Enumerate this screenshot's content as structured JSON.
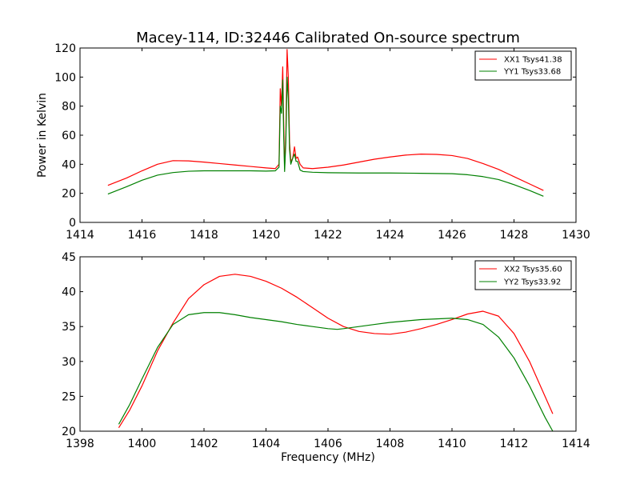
{
  "chart_data": [
    {
      "type": "line",
      "title": "Macey-114, ID:32446 Calibrated On-source spectrum",
      "xlabel": "",
      "ylabel": "Power in Kelvin",
      "xlim": [
        1414,
        1430
      ],
      "ylim": [
        0,
        120
      ],
      "xticks": [
        "1414",
        "1416",
        "1418",
        "1420",
        "1422",
        "1424",
        "1426",
        "1428",
        "1430"
      ],
      "yticks": [
        "0",
        "20",
        "40",
        "60",
        "80",
        "100",
        "120"
      ],
      "legend_position": "top-right",
      "grid": false,
      "series": [
        {
          "name": "XX1 Tsys41.38",
          "color": "#ff0000",
          "points": [
            [
              1414.9,
              25.5
            ],
            [
              1415.5,
              30.5
            ],
            [
              1416,
              35.5
            ],
            [
              1416.5,
              40
            ],
            [
              1417,
              42.5
            ],
            [
              1417.5,
              42.3
            ],
            [
              1418,
              41.5
            ],
            [
              1418.5,
              40.5
            ],
            [
              1419,
              39.5
            ],
            [
              1419.5,
              38.5
            ],
            [
              1420,
              37.5
            ],
            [
              1420.3,
              37
            ],
            [
              1420.42,
              40
            ],
            [
              1420.46,
              92
            ],
            [
              1420.5,
              80
            ],
            [
              1420.54,
              107
            ],
            [
              1420.57,
              70
            ],
            [
              1420.6,
              37
            ],
            [
              1420.64,
              60
            ],
            [
              1420.68,
              119
            ],
            [
              1420.72,
              100
            ],
            [
              1420.76,
              55
            ],
            [
              1420.8,
              42
            ],
            [
              1420.86,
              44
            ],
            [
              1420.92,
              52
            ],
            [
              1420.97,
              44
            ],
            [
              1421.02,
              45
            ],
            [
              1421.1,
              40
            ],
            [
              1421.2,
              37.5
            ],
            [
              1421.5,
              37
            ],
            [
              1422,
              38
            ],
            [
              1422.5,
              39.5
            ],
            [
              1423,
              41.5
            ],
            [
              1423.5,
              43.5
            ],
            [
              1424,
              45
            ],
            [
              1424.5,
              46.3
            ],
            [
              1425,
              47
            ],
            [
              1425.5,
              46.8
            ],
            [
              1426,
              46
            ],
            [
              1426.5,
              44
            ],
            [
              1427,
              40.5
            ],
            [
              1427.5,
              36.5
            ],
            [
              1428,
              31.5
            ],
            [
              1428.5,
              26.5
            ],
            [
              1428.95,
              22
            ]
          ]
        },
        {
          "name": "YY1 Tsys33.68",
          "color": "#008000",
          "points": [
            [
              1414.9,
              19.5
            ],
            [
              1415.5,
              24.5
            ],
            [
              1416,
              29
            ],
            [
              1416.5,
              32.5
            ],
            [
              1417,
              34.3
            ],
            [
              1417.5,
              35.2
            ],
            [
              1418,
              35.5
            ],
            [
              1418.5,
              35.5
            ],
            [
              1419,
              35.5
            ],
            [
              1419.5,
              35.5
            ],
            [
              1420,
              35.3
            ],
            [
              1420.3,
              35.5
            ],
            [
              1420.42,
              38
            ],
            [
              1420.46,
              80
            ],
            [
              1420.5,
              75
            ],
            [
              1420.54,
              98
            ],
            [
              1420.57,
              60
            ],
            [
              1420.6,
              35
            ],
            [
              1420.64,
              55
            ],
            [
              1420.68,
              100
            ],
            [
              1420.72,
              85
            ],
            [
              1420.76,
              50
            ],
            [
              1420.8,
              40
            ],
            [
              1420.86,
              44
            ],
            [
              1420.92,
              47
            ],
            [
              1420.97,
              42
            ],
            [
              1421.02,
              42
            ],
            [
              1421.1,
              36
            ],
            [
              1421.2,
              35
            ],
            [
              1421.5,
              34.5
            ],
            [
              1422,
              34.2
            ],
            [
              1423,
              34
            ],
            [
              1424,
              34
            ],
            [
              1425,
              33.8
            ],
            [
              1426,
              33.5
            ],
            [
              1426.5,
              32.8
            ],
            [
              1427,
              31.5
            ],
            [
              1427.5,
              29.5
            ],
            [
              1428,
              26
            ],
            [
              1428.5,
              22
            ],
            [
              1428.95,
              18
            ]
          ]
        }
      ]
    },
    {
      "type": "line",
      "title": "",
      "xlabel": "Frequency (MHz)",
      "ylabel": "",
      "xlim": [
        1398,
        1414
      ],
      "ylim": [
        20,
        45
      ],
      "xticks": [
        "1398",
        "1400",
        "1402",
        "1404",
        "1406",
        "1408",
        "1410",
        "1412",
        "1414"
      ],
      "yticks": [
        "20",
        "25",
        "30",
        "35",
        "40",
        "45"
      ],
      "legend_position": "top-right",
      "grid": false,
      "series": [
        {
          "name": "XX2 Tsys35.60",
          "color": "#ff0000",
          "points": [
            [
              1399.25,
              20.5
            ],
            [
              1399.6,
              23
            ],
            [
              1400,
              26.5
            ],
            [
              1400.5,
              31.5
            ],
            [
              1401,
              35.5
            ],
            [
              1401.5,
              39
            ],
            [
              1402,
              41
            ],
            [
              1402.5,
              42.2
            ],
            [
              1403,
              42.5
            ],
            [
              1403.5,
              42.2
            ],
            [
              1404,
              41.5
            ],
            [
              1404.5,
              40.5
            ],
            [
              1405,
              39.2
            ],
            [
              1405.5,
              37.7
            ],
            [
              1406,
              36.2
            ],
            [
              1406.5,
              35
            ],
            [
              1407,
              34.3
            ],
            [
              1407.5,
              34
            ],
            [
              1408,
              33.9
            ],
            [
              1408.5,
              34.2
            ],
            [
              1409,
              34.7
            ],
            [
              1409.5,
              35.3
            ],
            [
              1410,
              36
            ],
            [
              1410.5,
              36.8
            ],
            [
              1411,
              37.2
            ],
            [
              1411.5,
              36.5
            ],
            [
              1412,
              34
            ],
            [
              1412.5,
              30
            ],
            [
              1413,
              25
            ],
            [
              1413.25,
              22.5
            ]
          ]
        },
        {
          "name": "YY2 Tsys33.92",
          "color": "#008000",
          "points": [
            [
              1399.25,
              21
            ],
            [
              1399.6,
              23.8
            ],
            [
              1400,
              27.5
            ],
            [
              1400.5,
              32
            ],
            [
              1401,
              35.3
            ],
            [
              1401.5,
              36.7
            ],
            [
              1402,
              37
            ],
            [
              1402.5,
              37
            ],
            [
              1403,
              36.7
            ],
            [
              1403.5,
              36.3
            ],
            [
              1404,
              36
            ],
            [
              1404.5,
              35.7
            ],
            [
              1405,
              35.3
            ],
            [
              1405.5,
              35
            ],
            [
              1406,
              34.7
            ],
            [
              1406.3,
              34.6
            ],
            [
              1406.5,
              34.7
            ],
            [
              1407,
              35
            ],
            [
              1407.5,
              35.3
            ],
            [
              1408,
              35.6
            ],
            [
              1408.5,
              35.8
            ],
            [
              1409,
              36
            ],
            [
              1409.5,
              36.1
            ],
            [
              1410,
              36.2
            ],
            [
              1410.5,
              36
            ],
            [
              1411,
              35.3
            ],
            [
              1411.5,
              33.5
            ],
            [
              1412,
              30.5
            ],
            [
              1412.5,
              26.5
            ],
            [
              1413,
              22
            ],
            [
              1413.25,
              20
            ]
          ]
        }
      ]
    }
  ]
}
